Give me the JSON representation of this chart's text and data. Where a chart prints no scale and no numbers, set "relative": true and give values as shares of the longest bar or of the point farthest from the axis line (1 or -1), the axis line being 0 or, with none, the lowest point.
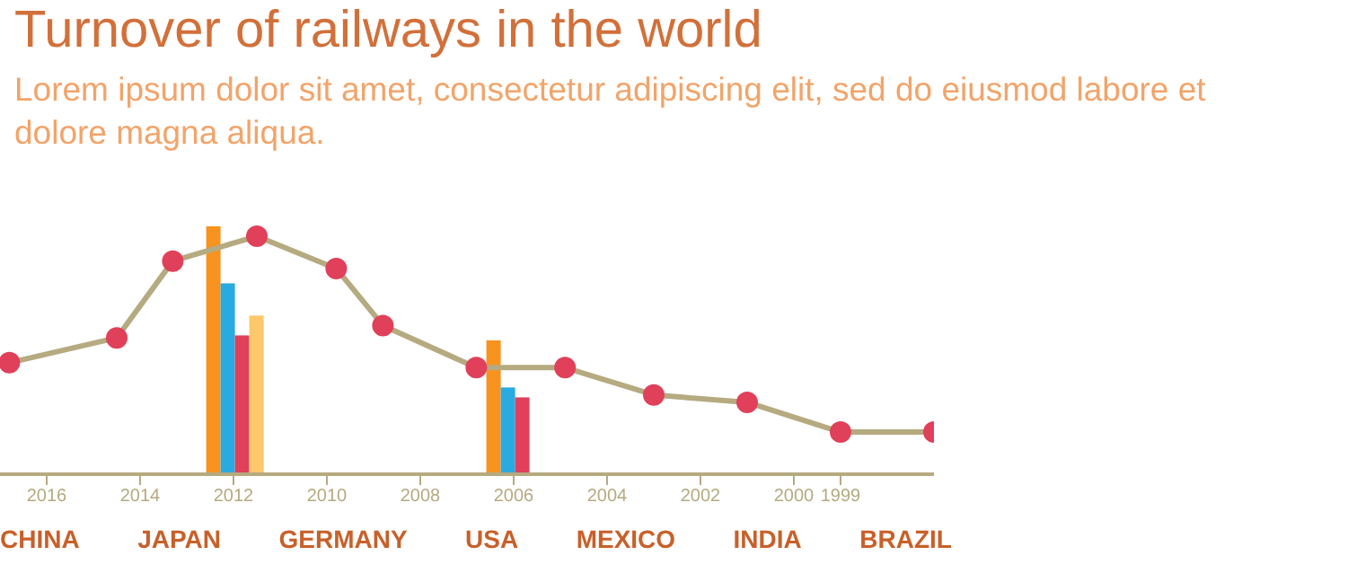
{
  "chart_data": {
    "type": "line",
    "title": "Turnover of railways in the world",
    "subtitle": "Lorem ipsum dolor sit amet, consectetur adipiscing elit, sed do eiusmod labore et dolore magna aliqua.",
    "relative": true,
    "xlim": [
      2017,
      1997
    ],
    "xticks": [
      2016,
      2014,
      2012,
      2010,
      2008,
      2006,
      2004,
      2002,
      2000,
      1999
    ],
    "annotations": [
      "CHINA",
      "JAPAN",
      "GERMANY",
      "USA",
      "MEXICO",
      "INDIA",
      "BRAZIL"
    ],
    "marker": "circle",
    "grid": false,
    "legend": false,
    "series": [
      {
        "color": "#b5aa80",
        "x": [
          2016.8,
          2014.5,
          2013.3,
          2011.5,
          2009.8,
          2008.8,
          2006.8,
          2004.9,
          2003,
          2001,
          1999,
          1997
        ],
        "values": [
          0.45,
          0.55,
          0.86,
          0.96,
          0.83,
          0.6,
          0.43,
          0.43,
          0.32,
          0.29,
          0.17,
          0.17
        ],
        "colors": [
          "#e0405a",
          "#e0405a",
          "#e0405a",
          "#e0405a",
          "#e0405a",
          "#e0405a",
          "#e0405a",
          "#e0405a",
          "#e0405a",
          "#e0405a",
          "#e0405a",
          "#e0405a"
        ]
      },
      {
        "type": "bar",
        "color": "#f7931e",
        "x": [
          2012,
          2006
        ],
        "values": [
          1,
          0.54
        ]
      },
      {
        "type": "bar",
        "color": "#29abe2",
        "x": [
          2012,
          2006
        ],
        "values": [
          0.77,
          0.35
        ]
      },
      {
        "type": "bar",
        "color": "#e0405a",
        "x": [
          2012,
          2006
        ],
        "values": [
          0.56,
          0.31
        ]
      },
      {
        "type": "bar",
        "color": "#fdc86a",
        "x": [
          2012
        ],
        "values": [
          0.64
        ]
      }
    ]
  }
}
